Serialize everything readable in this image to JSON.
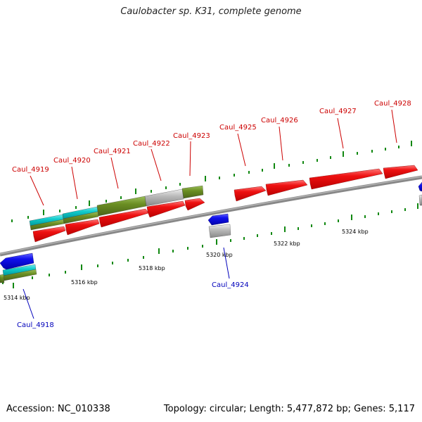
{
  "title": "Caulobacter sp. K31, complete genome",
  "footer": {
    "accession": "Accession: NC_010338",
    "summary": "Topology: circular; Length: 5,477,872 bp; Genes: 5,117"
  },
  "colors": {
    "plus_cds": "#ee1111",
    "minus_cds": "#1111ee",
    "cyan_feature": "#11cccc",
    "olive_feature": "#6b8e23",
    "grey_feature": "#bbbbbb",
    "backbone": "#888888",
    "tick": "#118811",
    "plus_label": "#cc0000",
    "minus_label": "#0000bb"
  },
  "kbp_labels": [
    "5314 kbp",
    "5316 kbp",
    "5318 kbp",
    "5320 kbp",
    "5322 kbp",
    "5324 kbp"
  ],
  "genes": [
    {
      "locus": "Caul_4918",
      "strand": "-"
    },
    {
      "locus": "Caul_4919",
      "strand": "+"
    },
    {
      "locus": "Caul_4920",
      "strand": "+"
    },
    {
      "locus": "Caul_4921",
      "strand": "+"
    },
    {
      "locus": "Caul_4922",
      "strand": "+"
    },
    {
      "locus": "Caul_4923",
      "strand": "+"
    },
    {
      "locus": "Caul_4924",
      "strand": "-"
    },
    {
      "locus": "Caul_4925",
      "strand": "+"
    },
    {
      "locus": "Caul_4926",
      "strand": "+"
    },
    {
      "locus": "Caul_4927",
      "strand": "+"
    },
    {
      "locus": "Caul_4928",
      "strand": "+"
    }
  ]
}
